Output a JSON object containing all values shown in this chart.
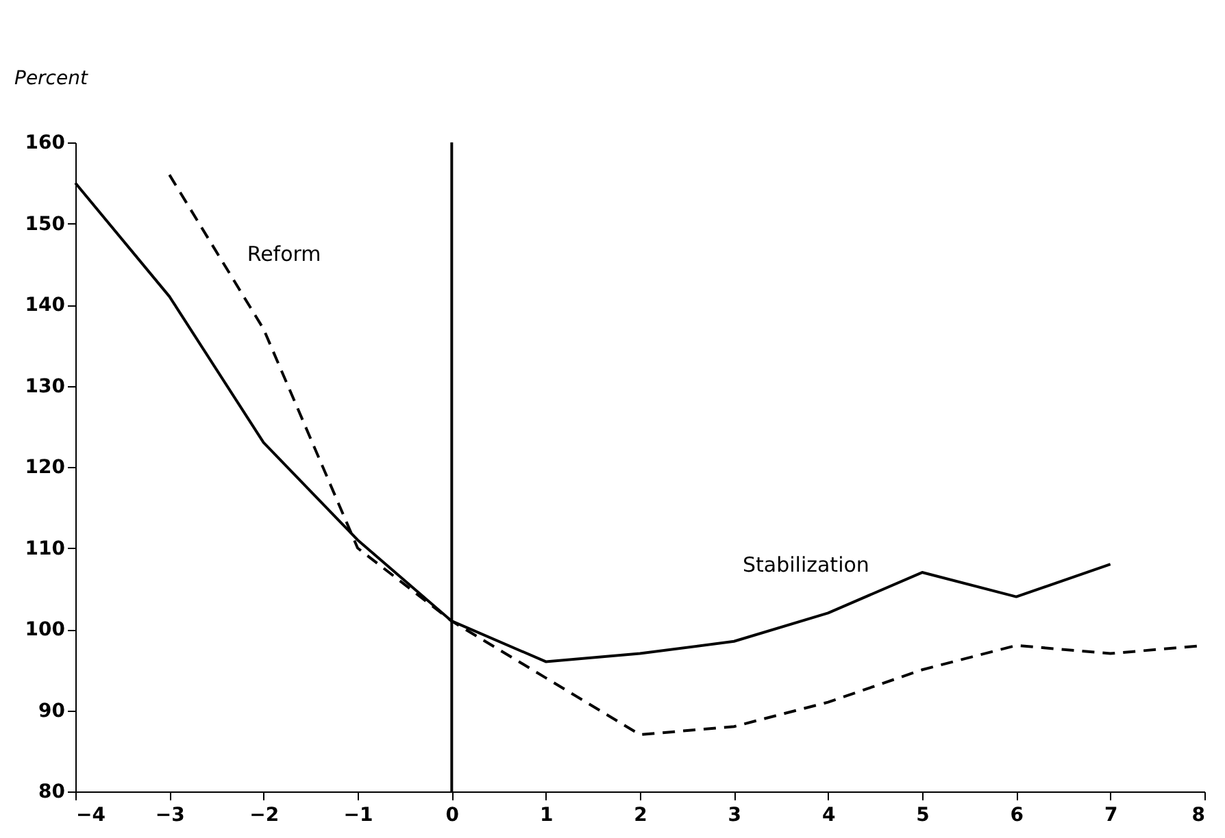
{
  "chart_data": {
    "type": "line",
    "ylabel": "Percent",
    "x": [
      -4,
      -3,
      -2,
      -1,
      0,
      1,
      2,
      3,
      4,
      5,
      6,
      7,
      8
    ],
    "series": [
      {
        "name": "Stabilization",
        "color": "#000000",
        "line_style": "solid",
        "values": [
          155,
          141,
          123,
          111,
          101,
          96,
          97,
          98.5,
          102,
          107,
          104,
          108,
          null
        ]
      },
      {
        "name": "Reform",
        "color": "#000000",
        "line_style": "dashed",
        "values": [
          null,
          156,
          137,
          110,
          101,
          94,
          87,
          88,
          91,
          95,
          98,
          97,
          98
        ]
      }
    ],
    "xlim": [
      -4,
      8
    ],
    "xticks": [
      {
        "value": -4,
        "label": "−4"
      },
      {
        "value": -3,
        "label": "−3"
      },
      {
        "value": -2,
        "label": "−2"
      },
      {
        "value": -1,
        "label": "−1"
      },
      0,
      1,
      2,
      3,
      4,
      5,
      6,
      7,
      8
    ],
    "ylim": [
      80,
      160
    ],
    "yticks": [
      80,
      90,
      100,
      110,
      120,
      130,
      140,
      150,
      160
    ],
    "ref_lines": [
      {
        "axis": "x",
        "value": 0,
        "color": "#000000",
        "line_style": "solid"
      }
    ],
    "grid": false,
    "marker": "none"
  }
}
